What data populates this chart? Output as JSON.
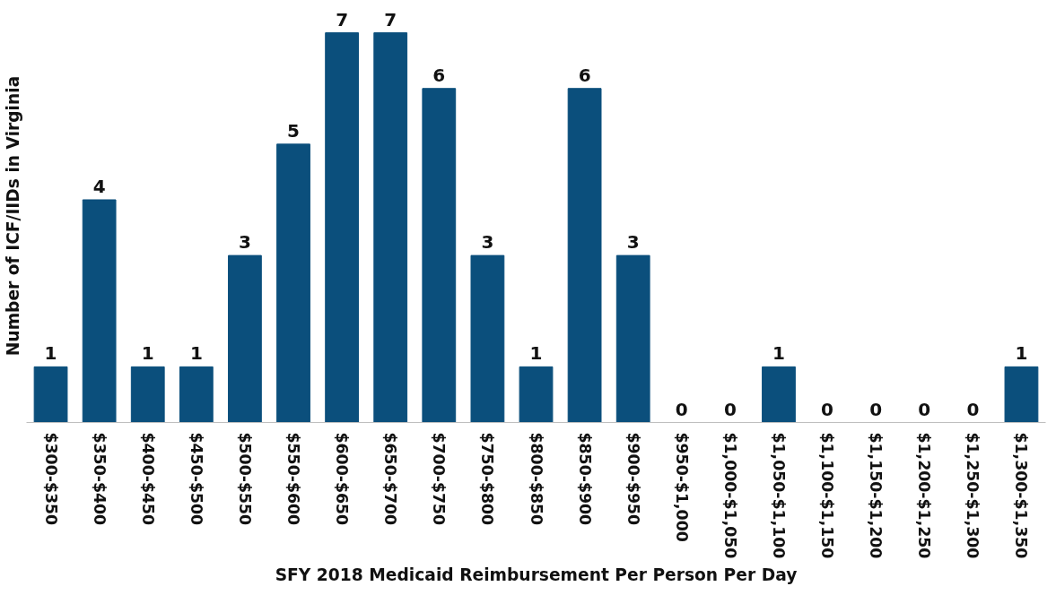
{
  "chart_data": {
    "type": "bar",
    "xlabel": "SFY 2018 Medicaid Reimbursement Per Person Per Day",
    "ylabel": "Number of ICF/IIDs in Virginia",
    "categories": [
      "$300-$350",
      "$350-$400",
      "$400-$450",
      "$450-$500",
      "$500-$550",
      "$550-$600",
      "$600-$650",
      "$650-$700",
      "$700-$750",
      "$750-$800",
      "$800-$850",
      "$850-$900",
      "$900-$950",
      "$950-$1,000",
      "$1,000-$1,050",
      "$1,050-$1,100",
      "$1,100-$1,150",
      "$1,150-$1,200",
      "$1,200-$1,250",
      "$1,250-$1,300",
      "$1,300-$1,350"
    ],
    "values": [
      1,
      4,
      1,
      1,
      3,
      5,
      7,
      7,
      6,
      3,
      1,
      6,
      3,
      0,
      0,
      1,
      0,
      0,
      0,
      0,
      1
    ],
    "color": "#0b4f7c",
    "data_labels": true,
    "grid": false
  }
}
